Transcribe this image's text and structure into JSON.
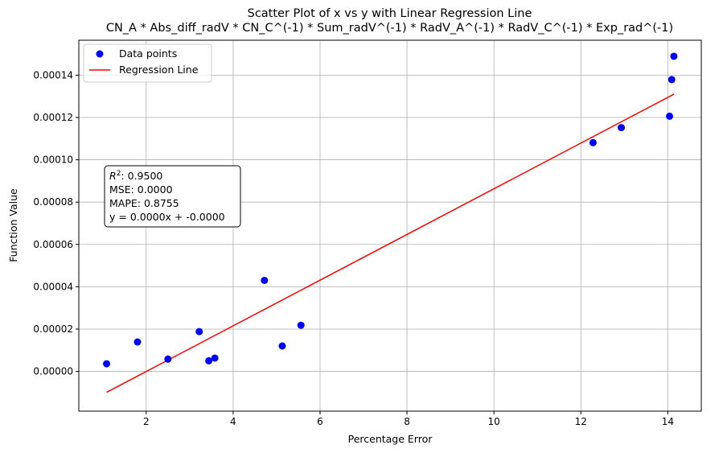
{
  "chart_data": {
    "type": "scatter",
    "title": "Scatter Plot of x vs y with Linear Regression Line",
    "subtitle": "CN_A * Abs_diff_radV * CN_C^(-1) * Sum_radV^(-1) * RadV_A^(-1) * RadV_C^(-1) * Exp_rad^(-1)",
    "xlabel": "Percentage Error",
    "ylabel": "Function Value",
    "xlim": [
      0.45,
      14.77
    ],
    "ylim": [
      -1.88e-05,
      0.0001565
    ],
    "x_ticks": [
      2,
      4,
      6,
      8,
      10,
      12,
      14
    ],
    "x_tick_labels": [
      "2",
      "4",
      "6",
      "8",
      "10",
      "12",
      "14"
    ],
    "y_ticks": [
      0,
      2e-05,
      4e-05,
      6e-05,
      8e-05,
      0.0001,
      0.00012,
      0.00014
    ],
    "y_tick_labels": [
      "0.00000",
      "0.00002",
      "0.00004",
      "0.00006",
      "0.00008",
      "0.00010",
      "0.00012",
      "0.00014"
    ],
    "grid": true,
    "legend_position": "top-left",
    "series": [
      {
        "name": "Data points",
        "kind": "scatter",
        "color": "#0000ff",
        "points": [
          {
            "x": 1.09,
            "y": 3.6e-06
          },
          {
            "x": 1.8,
            "y": 1.39e-05
          },
          {
            "x": 2.5,
            "y": 5.8e-06
          },
          {
            "x": 3.22,
            "y": 1.88e-05
          },
          {
            "x": 3.44,
            "y": 5e-06
          },
          {
            "x": 3.58,
            "y": 6.3e-06
          },
          {
            "x": 4.72,
            "y": 4.3e-05
          },
          {
            "x": 5.13,
            "y": 1.2e-05
          },
          {
            "x": 5.56,
            "y": 2.18e-05
          },
          {
            "x": 12.28,
            "y": 0.0001081
          },
          {
            "x": 12.93,
            "y": 0.0001152
          },
          {
            "x": 14.04,
            "y": 0.0001206
          },
          {
            "x": 14.09,
            "y": 0.0001379
          },
          {
            "x": 14.14,
            "y": 0.0001489
          }
        ]
      },
      {
        "name": "Regression Line",
        "kind": "line",
        "color": "#ff0000",
        "points": [
          {
            "x": 1.09,
            "y": -9.9e-06
          },
          {
            "x": 14.14,
            "y": 0.000131
          }
        ]
      }
    ],
    "annotation": {
      "r2_label": "R",
      "r2_sup": "2",
      "r2_value": ": 0.9500",
      "mse": "MSE: 0.0000",
      "mape": "MAPE: 0.8755",
      "equation": "y = 0.0000x + -0.0000"
    }
  }
}
